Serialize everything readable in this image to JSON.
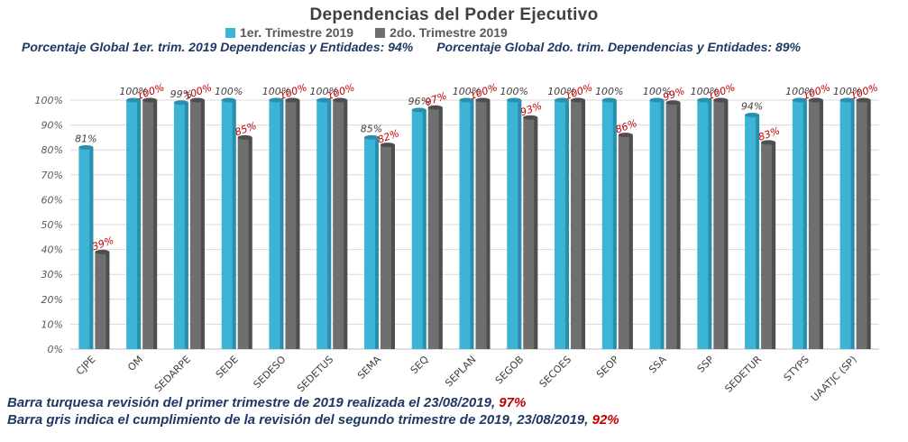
{
  "chart_data": {
    "type": "bar",
    "title": "Dependencias del Poder Ejecutivo",
    "categories": [
      "CJPE",
      "OM",
      "SEDARPE",
      "SEDE",
      "SEDESO",
      "SEDETUS",
      "SEMA",
      "SEQ",
      "SEPLAN",
      "SEGOB",
      "SECOES",
      "SEOP",
      "SSA",
      "SSP",
      "SEDETUR",
      "STYPS",
      "UAATJC (SP)"
    ],
    "series": [
      {
        "name": "1er. Trimestre 2019",
        "color": "#3cb4d6",
        "values": [
          81,
          100,
          99,
          100,
          100,
          100,
          85,
          96,
          100,
          100,
          100,
          100,
          100,
          100,
          94,
          100,
          100
        ],
        "labels": [
          "81%",
          "100%",
          "99%",
          "100%",
          "100%",
          "100%",
          "85%",
          "96%",
          "100%",
          "100%",
          "100%",
          "100%",
          "100%",
          "100%",
          "94%",
          "100%",
          "100%"
        ]
      },
      {
        "name": "2do. Trimestre 2019",
        "color": "#6f6f6f",
        "values": [
          39,
          100,
          100,
          85,
          100,
          100,
          82,
          97,
          100,
          93,
          100,
          86,
          99,
          100,
          83,
          100,
          100
        ],
        "labels": [
          "39%",
          "100%",
          "100%",
          "85%",
          "100%",
          "100%",
          "82%",
          "97%",
          "100%",
          "93%",
          "100%",
          "86%",
          "99%",
          "100%",
          "83%",
          "100%",
          "100%"
        ]
      }
    ],
    "ylim": [
      0,
      100
    ],
    "yticks": [
      "0%",
      "10%",
      "20%",
      "30%",
      "40%",
      "50%",
      "60%",
      "70%",
      "80%",
      "90%",
      "100%"
    ],
    "grid": true,
    "legend_position": "top"
  },
  "subtitle": {
    "part1": "Porcentaje Global 1er. trim. 2019 Dependencias y Entidades: 94%",
    "part2": "Porcentaje Global  2do. trim. Dependencias y Entidades: 89%"
  },
  "footer": {
    "line1_text": "Barra turquesa revisión del primer trimestre de 2019 realizada el  23/08/2019,",
    "line1_value": "97%",
    "line2_text": "Barra gris indica el cumplimiento de la revisión del  segundo trimestre de 2019,  23/08/2019,",
    "line2_value": "92%"
  }
}
